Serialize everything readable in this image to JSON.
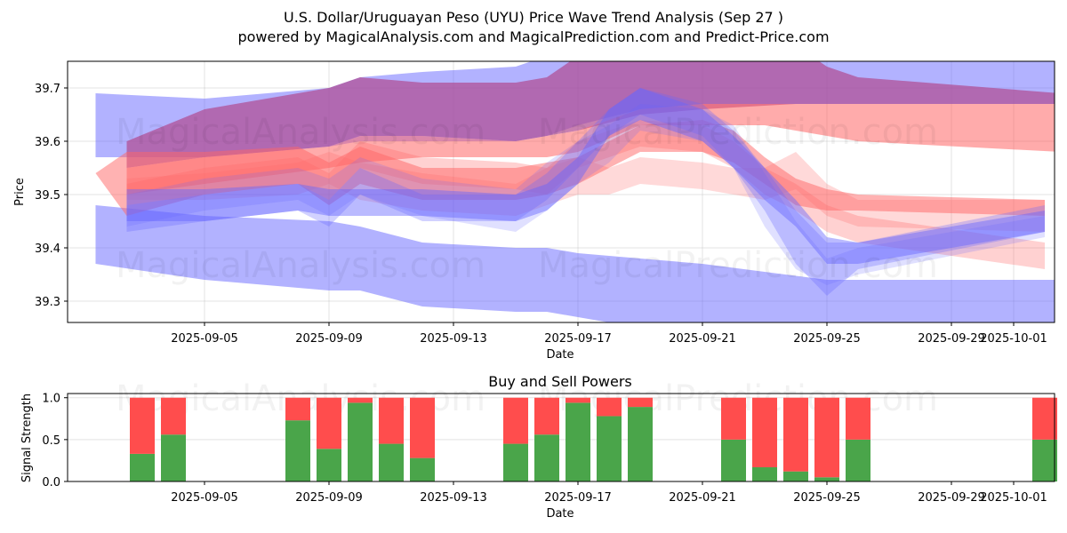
{
  "header": {
    "title": "U.S. Dollar/Uruguayan Peso (UYU) Price Wave Trend Analysis (Sep 27 )",
    "subtitle": "powered by MagicalAnalysis.com and MagicalPrediction.com and Predict-Price.com"
  },
  "watermarks": [
    "MagicalAnalysis.com",
    "MagicalPrediction.com"
  ],
  "colors": {
    "buy": "#4aa54a",
    "sell": "#ff4d4d",
    "blue_band": "#6666ff",
    "red_band": "#ff6666",
    "purple_band": "#b04a90"
  },
  "chart_data": [
    {
      "type": "area",
      "title": "",
      "xlabel": "Date",
      "ylabel": "Price",
      "ylim": [
        39.26,
        39.75
      ],
      "xlim": [
        "2025-09-01",
        "2025-10-03"
      ],
      "grid": true,
      "yticks": [
        "39.3",
        "39.4",
        "39.5",
        "39.6",
        "39.7"
      ],
      "xticks": [
        "2025-09-05",
        "2025-09-09",
        "2025-09-13",
        "2025-09-17",
        "2025-09-21",
        "2025-09-25",
        "2025-09-29",
        "2025-10-01"
      ],
      "bands": [
        {
          "name": "blue-upper-wide",
          "color": "blue",
          "opacity": 0.5,
          "x": [
            1.5,
            5,
            9,
            10,
            12,
            15,
            16,
            17,
            19,
            21,
            25,
            26,
            32.5
          ],
          "upper": [
            39.69,
            39.68,
            39.7,
            39.72,
            39.73,
            39.74,
            39.76,
            39.78,
            39.79,
            39.79,
            39.78,
            39.77,
            39.75
          ],
          "lower": [
            39.57,
            39.57,
            39.59,
            39.6,
            39.6,
            39.6,
            39.61,
            39.63,
            39.66,
            39.67,
            39.67,
            39.67,
            39.67
          ]
        },
        {
          "name": "purple-upper",
          "color": "purple",
          "opacity": 0.7,
          "x": [
            2.5,
            5,
            9,
            10,
            12,
            15,
            16,
            17,
            19,
            21,
            24,
            25,
            26,
            32.5
          ],
          "upper": [
            39.6,
            39.66,
            39.7,
            39.72,
            39.71,
            39.71,
            39.72,
            39.76,
            39.78,
            39.78,
            39.78,
            39.74,
            39.72,
            39.69
          ],
          "lower": [
            39.55,
            39.57,
            39.59,
            39.61,
            39.61,
            39.6,
            39.61,
            39.62,
            39.65,
            39.66,
            39.67,
            39.67,
            39.67,
            39.67
          ]
        },
        {
          "name": "red-upper",
          "color": "red",
          "opacity": 0.55,
          "x": [
            2.5,
            5,
            9,
            10,
            12,
            15,
            16,
            17,
            19,
            21,
            23,
            25,
            26,
            32.5
          ],
          "upper": [
            39.55,
            39.57,
            39.59,
            39.61,
            39.61,
            39.6,
            39.61,
            39.62,
            39.66,
            39.67,
            39.67,
            39.67,
            39.67,
            39.67
          ],
          "lower": [
            39.5,
            39.52,
            39.55,
            39.56,
            39.57,
            39.57,
            39.57,
            39.58,
            39.63,
            39.63,
            39.63,
            39.61,
            39.6,
            39.58
          ]
        },
        {
          "name": "blue-lower-wide",
          "color": "blue",
          "opacity": 0.5,
          "x": [
            1.5,
            5,
            9,
            10,
            12,
            15,
            16,
            17,
            19,
            21,
            25,
            26,
            32.5
          ],
          "upper": [
            39.48,
            39.46,
            39.45,
            39.44,
            39.41,
            39.4,
            39.4,
            39.39,
            39.38,
            39.37,
            39.34,
            39.34,
            39.34
          ],
          "lower": [
            39.37,
            39.34,
            39.32,
            39.32,
            39.29,
            39.28,
            39.28,
            39.27,
            39.25,
            39.25,
            39.25,
            39.25,
            39.25
          ]
        },
        {
          "name": "red-wave-1",
          "color": "red",
          "opacity": 0.5,
          "x": [
            1.5,
            2.5,
            5,
            8,
            9,
            10,
            12,
            15,
            16,
            17,
            19,
            21,
            22,
            23,
            24,
            25,
            26,
            32
          ],
          "upper": [
            39.54,
            39.58,
            39.58,
            39.59,
            39.56,
            39.59,
            39.55,
            39.55,
            39.56,
            39.57,
            39.63,
            39.64,
            39.62,
            39.57,
            39.53,
            39.51,
            39.5,
            39.49
          ],
          "lower": [
            39.54,
            39.46,
            39.5,
            39.52,
            39.48,
            39.52,
            39.49,
            39.49,
            39.5,
            39.52,
            39.58,
            39.58,
            39.56,
            39.52,
            39.48,
            39.47,
            39.47,
            39.46
          ]
        },
        {
          "name": "red-wave-2",
          "color": "red",
          "opacity": 0.3,
          "x": [
            2.5,
            5,
            8,
            9,
            10,
            12,
            15,
            16,
            17,
            19,
            21,
            22,
            23,
            24,
            25,
            26,
            32
          ],
          "upper": [
            39.52,
            39.55,
            39.57,
            39.54,
            39.6,
            39.57,
            39.56,
            39.55,
            39.6,
            39.64,
            39.63,
            39.6,
            39.55,
            39.52,
            39.48,
            39.46,
            39.41
          ],
          "lower": [
            39.48,
            39.5,
            39.52,
            39.49,
            39.55,
            39.52,
            39.51,
            39.5,
            39.55,
            39.59,
            39.58,
            39.55,
            39.5,
            39.47,
            39.43,
            39.41,
            39.36
          ]
        },
        {
          "name": "red-wave-3",
          "color": "red",
          "opacity": 0.25,
          "x": [
            2.5,
            5,
            8,
            9,
            10,
            12,
            15,
            16,
            17,
            18,
            19,
            21,
            22,
            23,
            24,
            25,
            26,
            32
          ],
          "upper": [
            39.53,
            39.54,
            39.56,
            39.58,
            39.56,
            39.54,
            39.52,
            39.55,
            39.57,
            39.55,
            39.57,
            39.56,
            39.55,
            39.55,
            39.58,
            39.52,
            39.49,
            39.49
          ],
          "lower": [
            39.49,
            39.49,
            39.5,
            39.52,
            39.49,
            39.47,
            39.46,
            39.48,
            39.5,
            39.5,
            39.52,
            39.51,
            39.5,
            39.49,
            39.51,
            39.46,
            39.44,
            39.43
          ]
        },
        {
          "name": "blue-wave-1",
          "color": "blue",
          "opacity": 0.45,
          "x": [
            2.5,
            5,
            8,
            9,
            10,
            12,
            15,
            16,
            17,
            18,
            19,
            21,
            22,
            23,
            24,
            25,
            26,
            32
          ],
          "upper": [
            39.51,
            39.51,
            39.52,
            39.51,
            39.51,
            39.51,
            39.5,
            39.52,
            39.57,
            39.66,
            39.7,
            39.66,
            39.61,
            39.55,
            39.49,
            39.42,
            39.41,
            39.47
          ],
          "lower": [
            39.45,
            39.45,
            39.47,
            39.46,
            39.46,
            39.46,
            39.45,
            39.47,
            39.52,
            39.61,
            39.64,
            39.6,
            39.55,
            39.49,
            39.44,
            39.37,
            39.37,
            39.43
          ]
        },
        {
          "name": "blue-wave-2",
          "color": "blue",
          "opacity": 0.3,
          "x": [
            2.5,
            5,
            8,
            9,
            10,
            12,
            15,
            16,
            17,
            18,
            19,
            21,
            22,
            23,
            24,
            25,
            26,
            32
          ],
          "upper": [
            39.48,
            39.5,
            39.52,
            39.49,
            39.55,
            39.5,
            39.5,
            39.54,
            39.6,
            39.66,
            39.7,
            39.67,
            39.62,
            39.55,
            39.47,
            39.41,
            39.41,
            39.48
          ],
          "lower": [
            39.43,
            39.45,
            39.47,
            39.44,
            39.5,
            39.45,
            39.45,
            39.49,
            39.55,
            39.61,
            39.65,
            39.61,
            39.55,
            39.47,
            39.37,
            39.31,
            39.36,
            39.43
          ]
        },
        {
          "name": "blue-wave-3",
          "color": "blue",
          "opacity": 0.2,
          "x": [
            2.5,
            5,
            8,
            9,
            10,
            12,
            15,
            16,
            17,
            18,
            19,
            21,
            22,
            23,
            24,
            25,
            26,
            32
          ],
          "upper": [
            39.5,
            39.53,
            39.55,
            39.53,
            39.57,
            39.53,
            39.51,
            39.56,
            39.6,
            39.63,
            39.67,
            39.66,
            39.63,
            39.54,
            39.45,
            39.38,
            39.4,
            39.46
          ],
          "lower": [
            39.44,
            39.47,
            39.49,
            39.46,
            39.5,
            39.46,
            39.43,
            39.47,
            39.52,
            39.56,
            39.62,
            39.6,
            39.55,
            39.44,
            39.36,
            39.33,
            39.35,
            39.42
          ]
        }
      ]
    },
    {
      "type": "bar",
      "title": "Buy and Sell Powers",
      "xlabel": "Date",
      "ylabel": "Signal Strength",
      "ylim": [
        0,
        1.05
      ],
      "xlim": [
        "2025-09-01",
        "2025-10-03"
      ],
      "grid": true,
      "yticks": [
        "0.0",
        "0.5",
        "1.0"
      ],
      "xticks": [
        "2025-09-05",
        "2025-09-09",
        "2025-09-13",
        "2025-09-17",
        "2025-09-21",
        "2025-09-25",
        "2025-09-29",
        "2025-10-01"
      ],
      "categories": [
        "2025-09-03",
        "2025-09-04",
        "2025-09-08",
        "2025-09-09",
        "2025-09-10",
        "2025-09-11",
        "2025-09-12",
        "2025-09-15",
        "2025-09-16",
        "2025-09-17",
        "2025-09-18",
        "2025-09-19",
        "2025-09-22",
        "2025-09-23",
        "2025-09-24",
        "2025-09-25",
        "2025-09-26",
        "2025-10-02"
      ],
      "series": [
        {
          "name": "Buy",
          "values": [
            0.33,
            0.56,
            0.73,
            0.39,
            0.94,
            0.45,
            0.28,
            0.45,
            0.56,
            0.94,
            0.78,
            0.89,
            0.5,
            0.17,
            0.12,
            0.05,
            0.5,
            0.5
          ]
        },
        {
          "name": "Sell",
          "values": [
            0.67,
            0.44,
            0.27,
            0.61,
            0.06,
            0.55,
            0.72,
            0.55,
            0.44,
            0.06,
            0.22,
            0.11,
            0.5,
            0.83,
            0.88,
            0.95,
            0.5,
            0.5
          ]
        }
      ]
    }
  ]
}
